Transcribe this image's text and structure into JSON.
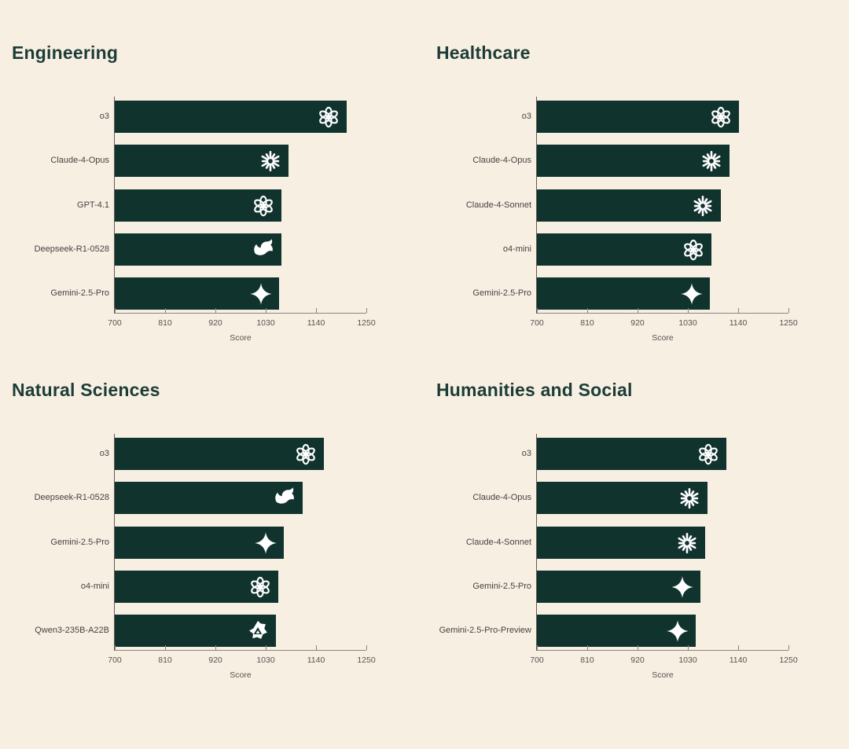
{
  "page": {
    "background": "#f8efe3"
  },
  "colors": {
    "bar_fill": "#10332e",
    "title_text": "#1c3d37",
    "category_label": "#454340",
    "tick_label": "#57534e",
    "axis_line": "#8a857e",
    "icon": "#ffffff"
  },
  "chart_data": [
    {
      "type": "bar",
      "orientation": "horizontal",
      "title": "Engineering",
      "xlabel": "Score",
      "xlim": [
        700,
        1250
      ],
      "xticks": [
        700,
        810,
        920,
        1030,
        1140,
        1250
      ],
      "grid": false,
      "rows": [
        {
          "model": "o3",
          "score": 1207,
          "icon": "openai"
        },
        {
          "model": "Claude-4-Opus",
          "score": 1080,
          "icon": "anthropic"
        },
        {
          "model": "GPT-4.1",
          "score": 1065,
          "icon": "openai"
        },
        {
          "model": "Deepseek-R1-0528",
          "score": 1064,
          "icon": "deepseek"
        },
        {
          "model": "Gemini-2.5-Pro",
          "score": 1059,
          "icon": "gemini"
        }
      ]
    },
    {
      "type": "bar",
      "orientation": "horizontal",
      "title": "Healthcare",
      "xlabel": "Score",
      "xlim": [
        700,
        1250
      ],
      "xticks": [
        700,
        810,
        920,
        1030,
        1140,
        1250
      ],
      "grid": false,
      "rows": [
        {
          "model": "o3",
          "score": 1141,
          "icon": "openai"
        },
        {
          "model": "Claude-4-Opus",
          "score": 1121,
          "icon": "anthropic"
        },
        {
          "model": "Claude-4-Sonnet",
          "score": 1103,
          "icon": "anthropic"
        },
        {
          "model": "o4-mini",
          "score": 1082,
          "icon": "openai"
        },
        {
          "model": "Gemini-2.5-Pro",
          "score": 1078,
          "icon": "gemini"
        }
      ]
    },
    {
      "type": "bar",
      "orientation": "horizontal",
      "title": "Natural Sciences",
      "xlabel": "Score",
      "xlim": [
        700,
        1250
      ],
      "xticks": [
        700,
        810,
        920,
        1030,
        1140,
        1250
      ],
      "grid": false,
      "rows": [
        {
          "model": "o3",
          "score": 1157,
          "icon": "openai"
        },
        {
          "model": "Deepseek-R1-0528",
          "score": 1111,
          "icon": "deepseek"
        },
        {
          "model": "Gemini-2.5-Pro",
          "score": 1069,
          "icon": "gemini"
        },
        {
          "model": "o4-mini",
          "score": 1058,
          "icon": "openai"
        },
        {
          "model": "Qwen3-235B-A22B",
          "score": 1052,
          "icon": "qwen"
        }
      ]
    },
    {
      "type": "bar",
      "orientation": "horizontal",
      "title": "Humanities and Social",
      "xlabel": "Score",
      "xlim": [
        700,
        1250
      ],
      "xticks": [
        700,
        810,
        920,
        1030,
        1140,
        1250
      ],
      "grid": false,
      "rows": [
        {
          "model": "o3",
          "score": 1115,
          "icon": "openai"
        },
        {
          "model": "Claude-4-Opus",
          "score": 1073,
          "icon": "anthropic"
        },
        {
          "model": "Claude-4-Sonnet",
          "score": 1067,
          "icon": "anthropic"
        },
        {
          "model": "Gemini-2.5-Pro",
          "score": 1057,
          "icon": "gemini"
        },
        {
          "model": "Gemini-2.5-Pro-Preview",
          "score": 1047,
          "icon": "gemini"
        }
      ]
    }
  ]
}
